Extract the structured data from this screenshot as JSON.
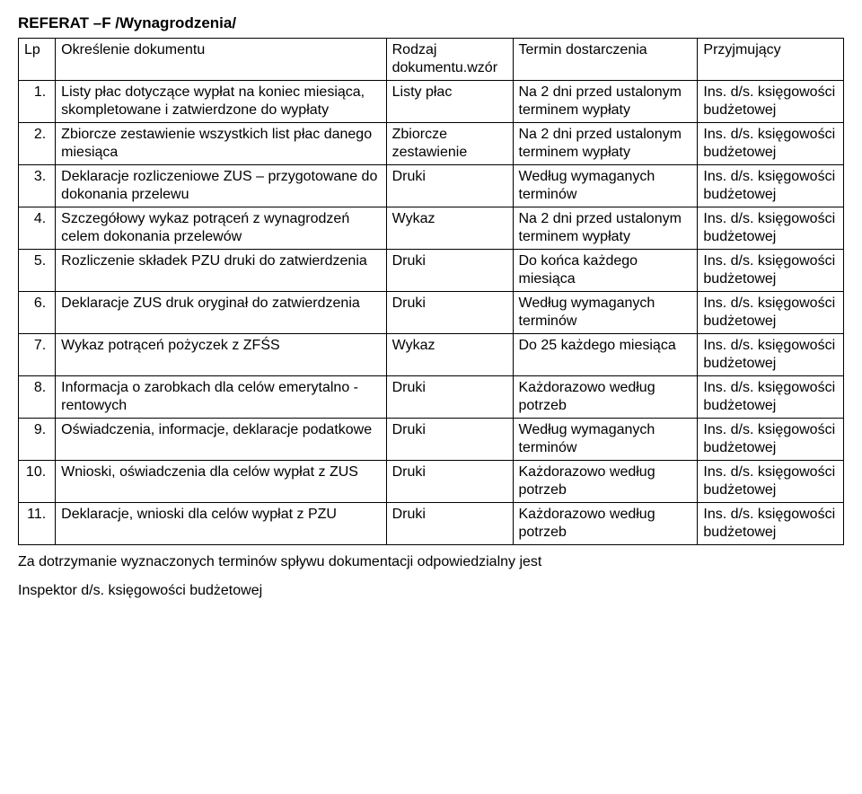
{
  "title": "REFERAT –F /Wynagrodzenia/",
  "headers": {
    "lp": "Lp",
    "desc": "Określenie dokumentu",
    "kind": "Rodzaj dokumentu.wzór",
    "term": "Termin dostarczenia",
    "recv": "Przyjmujący"
  },
  "rows": [
    {
      "lp": "1.",
      "desc": "Listy płac dotyczące wypłat na koniec miesiąca, skompletowane i zatwierdzone do wypłaty",
      "kind": "Listy płac",
      "term": "Na 2 dni przed ustalonym terminem wypłaty",
      "recv": "Ins. d/s. księgowości budżetowej"
    },
    {
      "lp": "2.",
      "desc": "Zbiorcze zestawienie wszystkich list płac danego miesiąca",
      "kind": "Zbiorcze zestawienie",
      "term": "Na 2 dni przed ustalonym terminem wypłaty",
      "recv": "Ins. d/s. księgowości budżetowej"
    },
    {
      "lp": "3.",
      "desc": "Deklaracje rozliczeniowe ZUS – przygotowane do dokonania przelewu",
      "kind": "Druki",
      "term": "Według wymaganych terminów",
      "recv": "Ins. d/s. księgowości budżetowej"
    },
    {
      "lp": "4.",
      "desc": "Szczegółowy wykaz potrąceń z wynagrodzeń celem dokonania przelewów",
      "kind": "Wykaz",
      "term": "Na 2 dni przed ustalonym terminem wypłaty",
      "recv": "Ins. d/s. księgowości budżetowej"
    },
    {
      "lp": "5.",
      "desc": "Rozliczenie składek PZU druki do zatwierdzenia",
      "kind": "Druki",
      "term": "Do końca każdego miesiąca",
      "recv": "Ins. d/s. księgowości budżetowej"
    },
    {
      "lp": "6.",
      "desc": "Deklaracje ZUS druk oryginał do zatwierdzenia",
      "kind": "Druki",
      "term": "Według wymaganych terminów",
      "recv": "Ins. d/s. księgowości budżetowej"
    },
    {
      "lp": "7.",
      "desc": "Wykaz potrąceń pożyczek z ZFŚS",
      "kind": "Wykaz",
      "term": "Do 25 każdego miesiąca",
      "recv": "Ins. d/s. księgowości budżetowej"
    },
    {
      "lp": "8.",
      "desc": "Informacja o zarobkach dla celów emerytalno -rentowych",
      "kind": "Druki",
      "term": "Każdorazowo według potrzeb",
      "recv": "Ins. d/s. księgowości budżetowej"
    },
    {
      "lp": "9.",
      "desc": "Oświadczenia, informacje, deklaracje podatkowe",
      "kind": "Druki",
      "term": "Według wymaganych terminów",
      "recv": "Ins. d/s. księgowości budżetowej"
    },
    {
      "lp": "10.",
      "desc": "Wnioski, oświadczenia dla celów wypłat z ZUS",
      "kind": "Druki",
      "term": "Każdorazowo według potrzeb",
      "recv": "Ins. d/s. księgowości budżetowej"
    },
    {
      "lp": "11.",
      "desc": "Deklaracje, wnioski dla celów wypłat z PZU",
      "kind": "Druki",
      "term": "Każdorazowo według potrzeb",
      "recv": "Ins. d/s. księgowości budżetowej"
    }
  ],
  "footer_line1": "Za dotrzymanie wyznaczonych terminów spływu dokumentacji odpowiedzialny jest",
  "footer_line2": "Inspektor d/s. księgowości budżetowej"
}
